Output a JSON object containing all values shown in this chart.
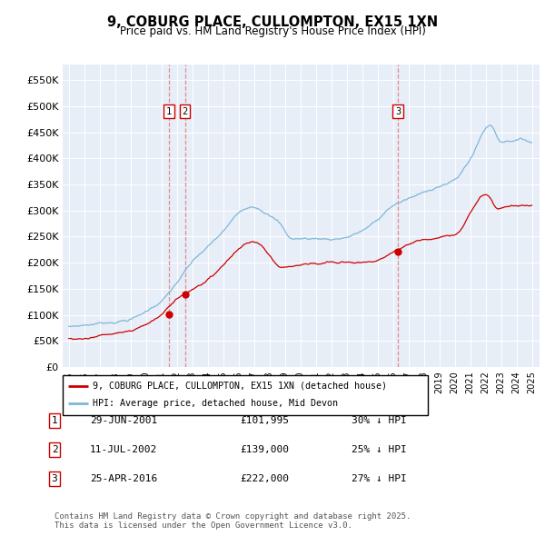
{
  "title": "9, COBURG PLACE, CULLOMPTON, EX15 1XN",
  "subtitle": "Price paid vs. HM Land Registry's House Price Index (HPI)",
  "ylim": [
    0,
    580000
  ],
  "yticks": [
    0,
    50000,
    100000,
    150000,
    200000,
    250000,
    300000,
    350000,
    400000,
    450000,
    500000,
    550000
  ],
  "ytick_labels": [
    "£0",
    "£50K",
    "£100K",
    "£150K",
    "£200K",
    "£250K",
    "£300K",
    "£350K",
    "£400K",
    "£450K",
    "£500K",
    "£550K"
  ],
  "hpi_color": "#7db8d8",
  "price_color": "#cc0000",
  "dashed_color": "#e08080",
  "plot_bg": "#e8eef8",
  "transactions": [
    {
      "label": "1",
      "date": "29-JUN-2001",
      "price": 101995,
      "price_str": "£101,995",
      "pct": "30%",
      "x_year": 2001.49
    },
    {
      "label": "2",
      "date": "11-JUL-2002",
      "price": 139000,
      "price_str": "£139,000",
      "pct": "25%",
      "x_year": 2002.53
    },
    {
      "label": "3",
      "date": "25-APR-2016",
      "price": 222000,
      "price_str": "£222,000",
      "pct": "27%",
      "x_year": 2016.32
    }
  ],
  "legend_entries": [
    {
      "label": "9, COBURG PLACE, CULLOMPTON, EX15 1XN (detached house)",
      "color": "#cc0000"
    },
    {
      "label": "HPI: Average price, detached house, Mid Devon",
      "color": "#7db8d8"
    }
  ],
  "footnote": "Contains HM Land Registry data © Crown copyright and database right 2025.\nThis data is licensed under the Open Government Licence v3.0.",
  "xlim_start": 1994.6,
  "xlim_end": 2025.5
}
